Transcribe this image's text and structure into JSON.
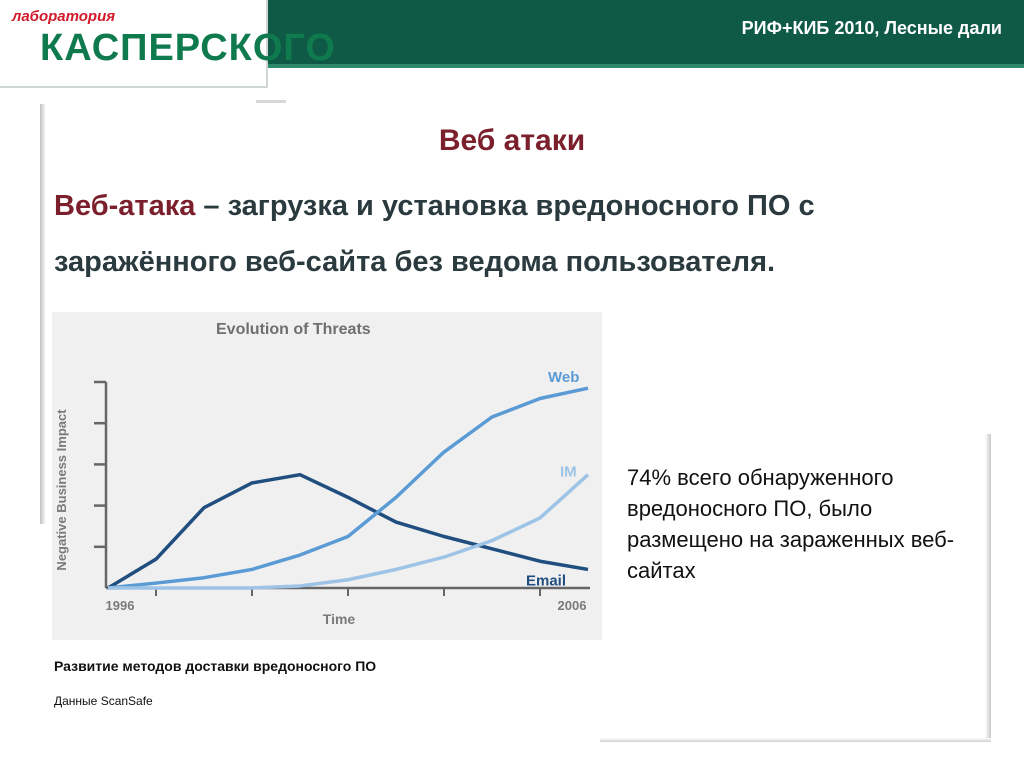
{
  "header": {
    "conference": "РИФ+КИБ 2010, Лесные дали",
    "logo_small": "лаборатория",
    "logo_main": "КАСПЕРСКОГО",
    "bar_color": "#0f5a46"
  },
  "slide": {
    "title": "Веб атаки",
    "definition_term": "Веб-атака",
    "definition_text": " – загрузка и установка вредоносного ПО с заражённого веб-сайта без ведома пользователя.",
    "side_note": "74% всего обнаруженного вредоносного ПО, было размещено на зараженных веб-сайтах",
    "caption": "Развитие методов доставки вредоносного ПО",
    "source": "Данные ScanSafe"
  },
  "chart_data": {
    "type": "line",
    "title": "Evolution of Threats",
    "xlabel": "Time",
    "ylabel": "Negative Business Impact",
    "x_tick_labels": [
      "1996",
      "2006"
    ],
    "x": [
      0,
      1,
      2,
      3,
      4,
      5,
      6,
      7,
      8,
      9,
      10
    ],
    "ylim": [
      0,
      5
    ],
    "grid": false,
    "series": [
      {
        "name": "Email",
        "color": "#1f4e7f",
        "values": [
          0,
          0.7,
          1.95,
          2.55,
          2.75,
          2.2,
          1.6,
          1.25,
          0.95,
          0.65,
          0.45
        ]
      },
      {
        "name": "Web",
        "color": "#5b9bd5",
        "values": [
          0,
          0.12,
          0.25,
          0.45,
          0.8,
          1.25,
          2.2,
          3.3,
          4.15,
          4.6,
          4.85
        ]
      },
      {
        "name": "IM",
        "color": "#9dc3e6",
        "values": [
          0,
          0,
          0,
          0,
          0.05,
          0.2,
          0.45,
          0.75,
          1.15,
          1.7,
          2.75
        ]
      }
    ]
  }
}
